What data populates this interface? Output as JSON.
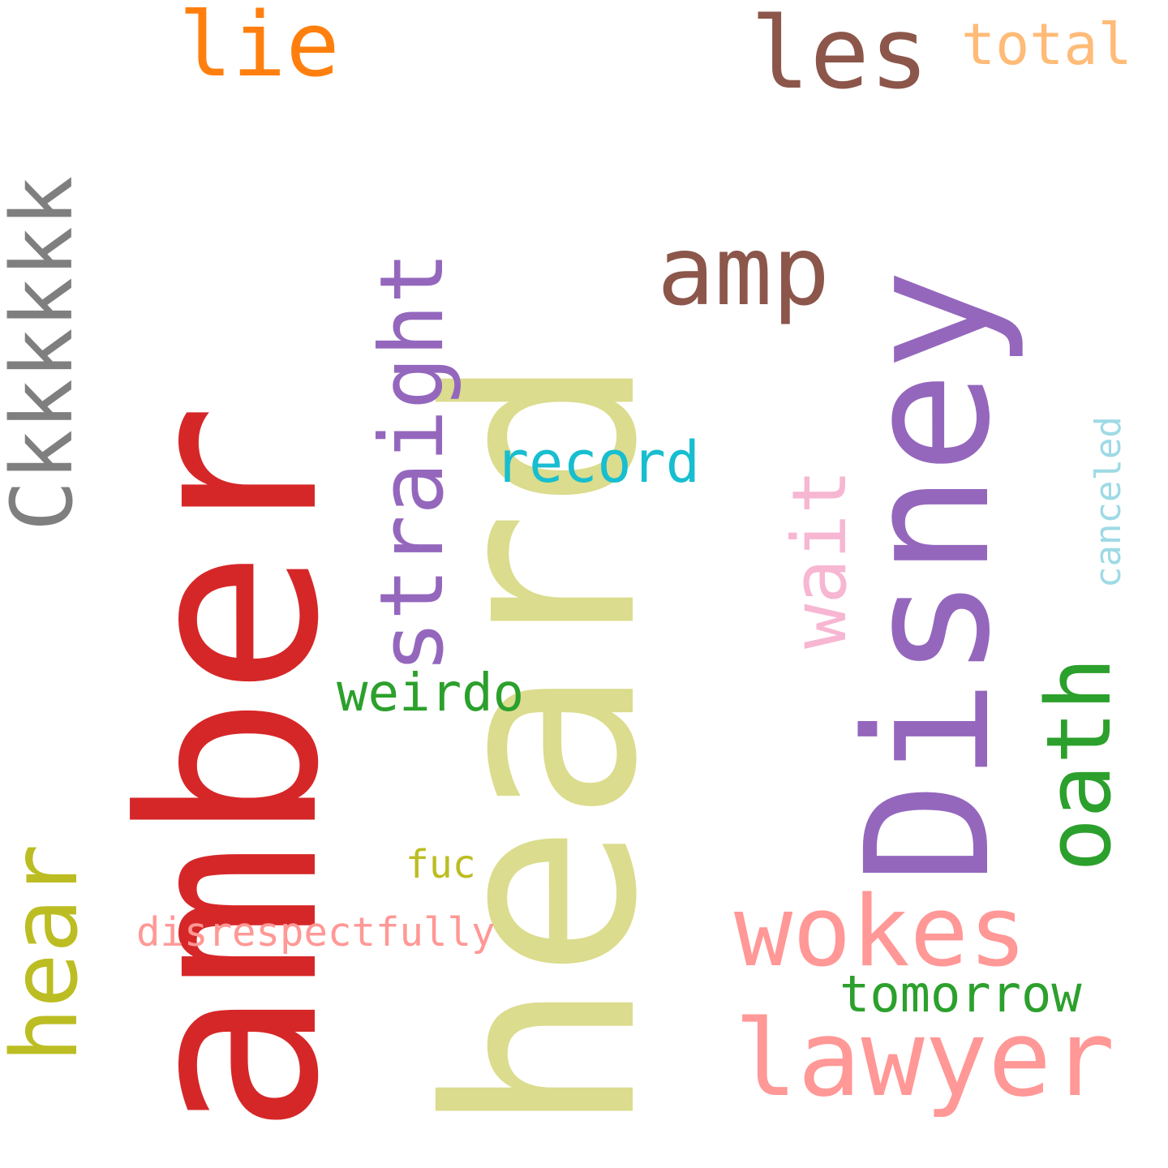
{
  "words": {
    "heard": {
      "text": "heard",
      "color": "#dbdc8d"
    },
    "amber": {
      "text": "amber",
      "color": "#d62728"
    },
    "disney": {
      "text": "Disney",
      "color": "#9467bd"
    },
    "ckkkkkk": {
      "text": "Ckkkkkk",
      "color": "#7f7f7f"
    },
    "lie": {
      "text": "lie",
      "color": "#ff7f0e"
    },
    "les": {
      "text": "les",
      "color": "#8c564b"
    },
    "total": {
      "text": "total",
      "color": "#ffbb78"
    },
    "straight": {
      "text": "straight",
      "color": "#9467bd"
    },
    "amp": {
      "text": "amp",
      "color": "#8c564b"
    },
    "wait": {
      "text": "wait",
      "color": "#f7b6d2"
    },
    "record": {
      "text": "record",
      "color": "#17becf"
    },
    "canceled": {
      "text": "canceled",
      "color": "#9edae5"
    },
    "oath": {
      "text": "oath",
      "color": "#2ca02c"
    },
    "weirdo": {
      "text": "weirdo",
      "color": "#2ca02c"
    },
    "hear": {
      "text": "hear",
      "color": "#bcbd22"
    },
    "fuc": {
      "text": "fuc",
      "color": "#bcbd22"
    },
    "disrespectfully": {
      "text": "disrespectfully",
      "color": "#ff9896"
    },
    "wokes": {
      "text": "wokes",
      "color": "#ff9896"
    },
    "tomorrow": {
      "text": "tomorrow",
      "color": "#2ca02c"
    },
    "lawyer": {
      "text": "lawyer",
      "color": "#ff9896"
    }
  }
}
